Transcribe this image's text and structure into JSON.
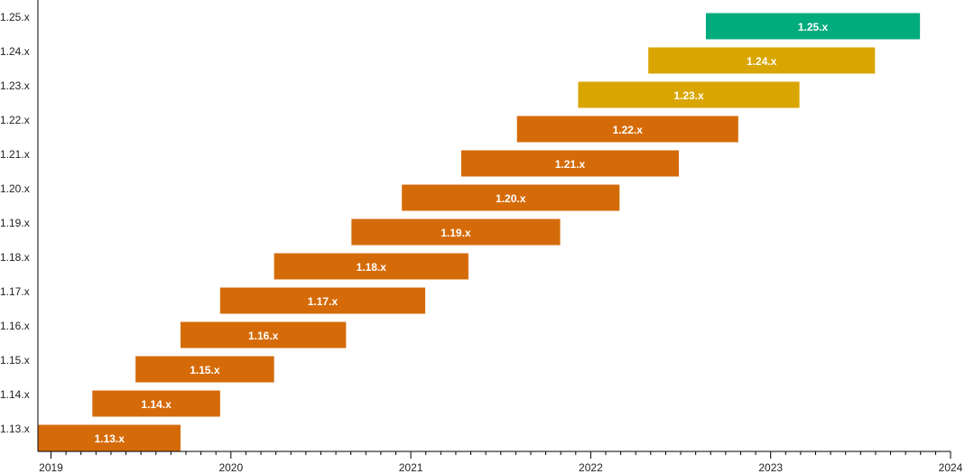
{
  "chart_data": {
    "type": "bar",
    "orientation": "horizontal-range",
    "title": "",
    "xlabel": "",
    "ylabel": "",
    "xlim": [
      2019,
      2024
    ],
    "x_ticks": [
      "2019",
      "2020",
      "2021",
      "2022",
      "2023",
      "2024"
    ],
    "grid": false,
    "colors": {
      "eol": "#d56b08",
      "maintenance": "#d9a500",
      "active": "#00ab7e"
    },
    "series": [
      {
        "label": "1.13.x",
        "start": 2018.93,
        "end": 2019.72,
        "status": "eol"
      },
      {
        "label": "1.14.x",
        "start": 2019.23,
        "end": 2019.94,
        "status": "eol"
      },
      {
        "label": "1.15.x",
        "start": 2019.47,
        "end": 2020.24,
        "status": "eol"
      },
      {
        "label": "1.16.x",
        "start": 2019.72,
        "end": 2020.64,
        "status": "eol"
      },
      {
        "label": "1.17.x",
        "start": 2019.94,
        "end": 2021.08,
        "status": "eol"
      },
      {
        "label": "1.18.x",
        "start": 2020.24,
        "end": 2021.32,
        "status": "eol"
      },
      {
        "label": "1.19.x",
        "start": 2020.67,
        "end": 2021.83,
        "status": "eol"
      },
      {
        "label": "1.20.x",
        "start": 2020.95,
        "end": 2022.16,
        "status": "eol"
      },
      {
        "label": "1.21.x",
        "start": 2021.28,
        "end": 2022.49,
        "status": "eol"
      },
      {
        "label": "1.22.x",
        "start": 2021.59,
        "end": 2022.82,
        "status": "eol"
      },
      {
        "label": "1.23.x",
        "start": 2021.93,
        "end": 2023.16,
        "status": "maintenance"
      },
      {
        "label": "1.24.x",
        "start": 2022.32,
        "end": 2023.58,
        "status": "maintenance"
      },
      {
        "label": "1.25.x",
        "start": 2022.64,
        "end": 2023.83,
        "status": "active"
      }
    ]
  }
}
